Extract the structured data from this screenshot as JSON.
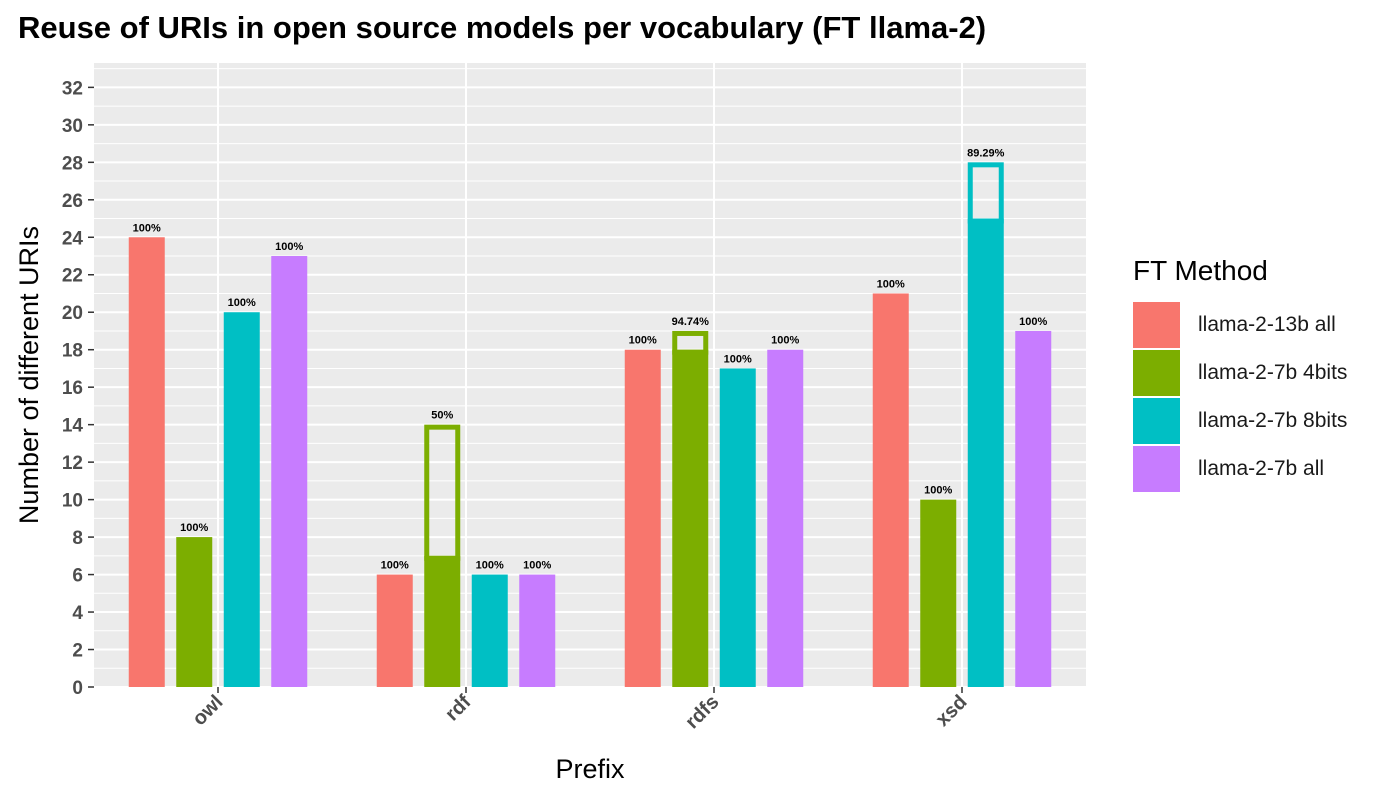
{
  "chart_data": {
    "type": "bar",
    "title": "Reuse of URIs in open source models per vocabulary (FT llama-2)",
    "xlabel": "Prefix",
    "ylabel": "Number of different URIs",
    "ylim": [
      0,
      32
    ],
    "yticks": [
      0,
      2,
      4,
      6,
      8,
      10,
      12,
      14,
      16,
      18,
      20,
      22,
      24,
      26,
      28,
      30,
      32
    ],
    "categories": [
      "owl",
      "rdf",
      "rdfs",
      "xsd"
    ],
    "grid": true,
    "legend": {
      "title": "FT Method",
      "position": "right"
    },
    "series": [
      {
        "name": "llama-2-13b all",
        "color": "#F8766D",
        "values": [
          24,
          6,
          18,
          21
        ],
        "filled": [
          24,
          6,
          18,
          21
        ],
        "labels": [
          "100%",
          "100%",
          "100%",
          "100%"
        ]
      },
      {
        "name": "llama-2-7b 4bits",
        "color": "#7CAE00",
        "values": [
          8,
          14,
          19,
          10
        ],
        "filled": [
          8,
          7,
          18,
          10
        ],
        "labels": [
          "100%",
          "50%",
          "94.74%",
          "100%"
        ]
      },
      {
        "name": "llama-2-7b 8bits",
        "color": "#00BFC4",
        "values": [
          20,
          6,
          17,
          28
        ],
        "filled": [
          20,
          6,
          17,
          25
        ],
        "labels": [
          "100%",
          "100%",
          "100%",
          "89.29%"
        ]
      },
      {
        "name": "llama-2-7b all",
        "color": "#C77CFF",
        "values": [
          23,
          6,
          18,
          19
        ],
        "filled": [
          23,
          6,
          18,
          19
        ],
        "labels": [
          "100%",
          "100%",
          "100%",
          "100%"
        ]
      }
    ],
    "panel_background": "#EBEBEB",
    "grid_color": "#FFFFFF"
  }
}
